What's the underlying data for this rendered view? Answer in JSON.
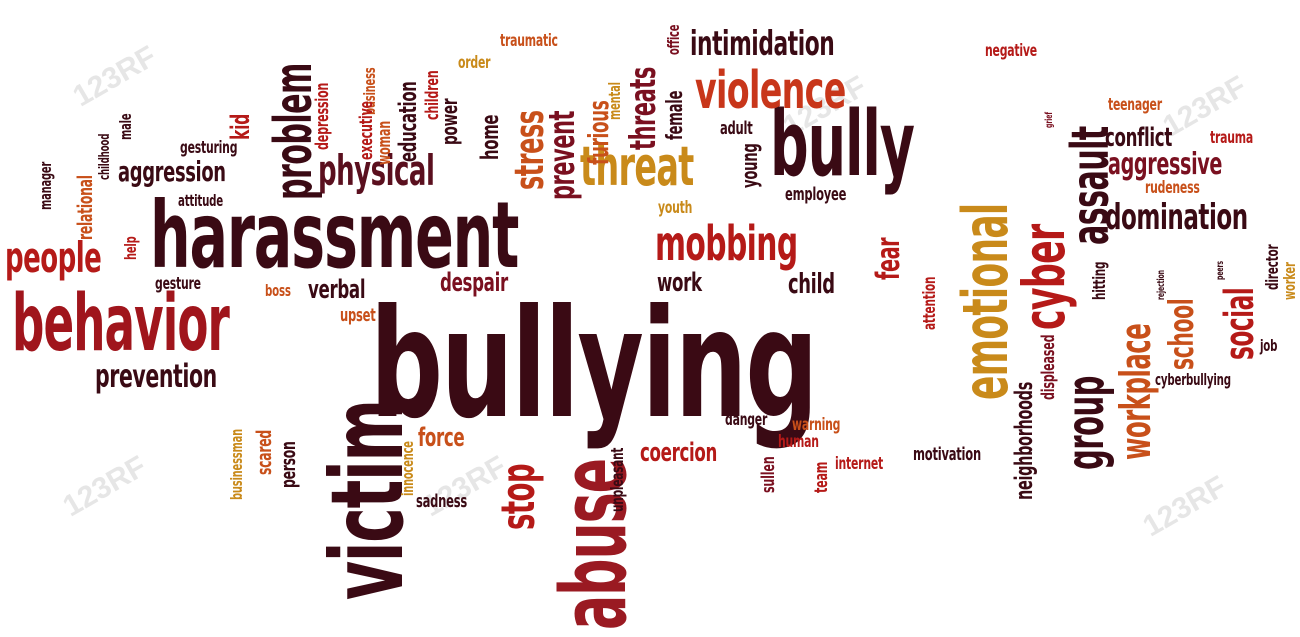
{
  "palette": {
    "dark": "#3a0a14",
    "wine": "#7a1020",
    "red": "#b51a18",
    "orange": "#c8501a",
    "gold": "#c98a1a",
    "brown": "#5a2d1a"
  },
  "watermark": "123RF",
  "words": [
    {
      "key": "bullying",
      "text": "bullying",
      "color": "#3a0a14"
    },
    {
      "key": "harassment",
      "text": "harassment",
      "color": "#3a0a14"
    },
    {
      "key": "behavior",
      "text": "behavior",
      "color": "#a0151c"
    },
    {
      "key": "victim",
      "text": "victim",
      "color": "#3a0a14"
    },
    {
      "key": "abuse",
      "text": "abuse",
      "color": "#9a1a22"
    },
    {
      "key": "bully",
      "text": "bully",
      "color": "#3a0a14"
    },
    {
      "key": "emotional",
      "text": "emotional",
      "color": "#c98a1a"
    },
    {
      "key": "violence",
      "text": "violence",
      "color": "#c8361a"
    },
    {
      "key": "threat",
      "text": "threat",
      "color": "#c98a1a"
    },
    {
      "key": "mobbing",
      "text": "mobbing",
      "color": "#b51a18"
    },
    {
      "key": "cyber",
      "text": "cyber",
      "color": "#b51a18"
    },
    {
      "key": "assault",
      "text": "assault",
      "color": "#3a0a14"
    },
    {
      "key": "physical",
      "text": "physical",
      "color": "#5a0f1e"
    },
    {
      "key": "problem",
      "text": "problem",
      "color": "#3a0a14"
    },
    {
      "key": "people",
      "text": "people",
      "color": "#b51a18"
    },
    {
      "key": "prevention",
      "text": "prevention",
      "color": "#3a0a14"
    },
    {
      "key": "workplace",
      "text": "workplace",
      "color": "#c8501a"
    },
    {
      "key": "group",
      "text": "group",
      "color": "#3a0a14"
    },
    {
      "key": "domination",
      "text": "domination",
      "color": "#3a0a14"
    },
    {
      "key": "stop",
      "text": "stop",
      "color": "#b51a18"
    },
    {
      "key": "stress",
      "text": "stress",
      "color": "#c8501a"
    },
    {
      "key": "intimidation",
      "text": "intimidation",
      "color": "#3a0a14"
    },
    {
      "key": "aggression",
      "text": "aggression",
      "color": "#3a0a14"
    },
    {
      "key": "social",
      "text": "social",
      "color": "#b51a18"
    },
    {
      "key": "school",
      "text": "school",
      "color": "#c8501a"
    },
    {
      "key": "aggressive",
      "text": "aggressive",
      "color": "#7a1020"
    },
    {
      "key": "conflict",
      "text": "conflict",
      "color": "#3a0a14"
    },
    {
      "key": "coercion",
      "text": "coercion",
      "color": "#b51a18"
    },
    {
      "key": "despair",
      "text": "despair",
      "color": "#7a1020"
    },
    {
      "key": "verbal",
      "text": "verbal",
      "color": "#3a0a14"
    },
    {
      "key": "fear",
      "text": "fear",
      "color": "#b51a18"
    },
    {
      "key": "child",
      "text": "child",
      "color": "#3a0a14"
    },
    {
      "key": "work",
      "text": "work",
      "color": "#3a0a14"
    },
    {
      "key": "force",
      "text": "force",
      "color": "#c8501a"
    },
    {
      "key": "prevent",
      "text": "prevent",
      "color": "#7a1020"
    },
    {
      "key": "threats",
      "text": "threats",
      "color": "#7a1020"
    },
    {
      "key": "furious",
      "text": "furious",
      "color": "#c8501a"
    },
    {
      "key": "neighborhoods",
      "text": "neighborhoods",
      "color": "#3a0a14"
    },
    {
      "key": "cyberbullying",
      "text": "cyberbullying",
      "color": "#3a0a14"
    },
    {
      "key": "gesture",
      "text": "gesture",
      "color": "#3a0a14"
    },
    {
      "key": "gesturing",
      "text": "gesturing",
      "color": "#3a0a14"
    },
    {
      "key": "relational",
      "text": "relational",
      "color": "#c8501a"
    },
    {
      "key": "education",
      "text": "education",
      "color": "#3a0a14"
    },
    {
      "key": "power",
      "text": "power",
      "color": "#3a0a14"
    },
    {
      "key": "home",
      "text": "home",
      "color": "#3a0a14"
    },
    {
      "key": "kid",
      "text": "kid",
      "color": "#b51a18"
    },
    {
      "key": "depression",
      "text": "depression",
      "color": "#b51a18"
    },
    {
      "key": "business",
      "text": "business",
      "color": "#c8501a"
    },
    {
      "key": "executive",
      "text": "executive",
      "color": "#b51a18"
    },
    {
      "key": "woman",
      "text": "woman",
      "color": "#c8501a"
    },
    {
      "key": "children",
      "text": "children",
      "color": "#b51a18"
    },
    {
      "key": "traumatic",
      "text": "traumatic",
      "color": "#c8501a"
    },
    {
      "key": "order",
      "text": "order",
      "color": "#c98a1a"
    },
    {
      "key": "female",
      "text": "female",
      "color": "#3a0a14"
    },
    {
      "key": "office",
      "text": "office",
      "color": "#7a1020"
    },
    {
      "key": "mental",
      "text": "mental",
      "color": "#c98a1a"
    },
    {
      "key": "adult",
      "text": "adult",
      "color": "#3a0a14"
    },
    {
      "key": "young",
      "text": "young",
      "color": "#3a0a14"
    },
    {
      "key": "employee",
      "text": "employee",
      "color": "#3a0a14"
    },
    {
      "key": "youth",
      "text": "youth",
      "color": "#c98a1a"
    },
    {
      "key": "negative",
      "text": "negative",
      "color": "#b51a18"
    },
    {
      "key": "teenager",
      "text": "teenager",
      "color": "#c8501a"
    },
    {
      "key": "trauma",
      "text": "trauma",
      "color": "#b51a18"
    },
    {
      "key": "rudeness",
      "text": "rudeness",
      "color": "#c8501a"
    },
    {
      "key": "hitting",
      "text": "hitting",
      "color": "#3a0a14"
    },
    {
      "key": "director",
      "text": "director",
      "color": "#3a0a14"
    },
    {
      "key": "worker",
      "text": "worker",
      "color": "#c98a1a"
    },
    {
      "key": "job",
      "text": "job",
      "color": "#3a0a14"
    },
    {
      "key": "displeased",
      "text": "displeased",
      "color": "#7a1020"
    },
    {
      "key": "attention",
      "text": "attention",
      "color": "#b51a18"
    },
    {
      "key": "danger",
      "text": "danger",
      "color": "#3a0a14"
    },
    {
      "key": "warning",
      "text": "warning",
      "color": "#c8501a"
    },
    {
      "key": "human",
      "text": "human",
      "color": "#b51a18"
    },
    {
      "key": "internet",
      "text": "internet",
      "color": "#b51a18"
    },
    {
      "key": "motivation",
      "text": "motivation",
      "color": "#3a0a14"
    },
    {
      "key": "team",
      "text": "team",
      "color": "#b51a18"
    },
    {
      "key": "sullen",
      "text": "sullen",
      "color": "#7a1020"
    },
    {
      "key": "unpleasant",
      "text": "unpleasant",
      "color": "#3a0a14"
    },
    {
      "key": "sadness",
      "text": "sadness",
      "color": "#3a0a14"
    },
    {
      "key": "innocence",
      "text": "innocence",
      "color": "#c98a1a"
    },
    {
      "key": "upset",
      "text": "upset",
      "color": "#c8501a"
    },
    {
      "key": "person",
      "text": "person",
      "color": "#3a0a14"
    },
    {
      "key": "scared",
      "text": "scared",
      "color": "#c8501a"
    },
    {
      "key": "businessman",
      "text": "businessman",
      "color": "#c98a1a"
    },
    {
      "key": "boss",
      "text": "boss",
      "color": "#c8501a"
    },
    {
      "key": "attitude",
      "text": "attitude",
      "color": "#3a0a14"
    },
    {
      "key": "childhood",
      "text": "childhood",
      "color": "#3a0a14"
    },
    {
      "key": "male",
      "text": "male",
      "color": "#3a0a14"
    },
    {
      "key": "manager",
      "text": "manager",
      "color": "#3a0a14"
    },
    {
      "key": "help",
      "text": "help",
      "color": "#b51a18"
    },
    {
      "key": "grief",
      "text": "grief",
      "color": "#7a1020"
    },
    {
      "key": "peers",
      "text": "peers",
      "color": "#3a0a14"
    },
    {
      "key": "rejection",
      "text": "rejection",
      "color": "#3a0a14"
    }
  ]
}
